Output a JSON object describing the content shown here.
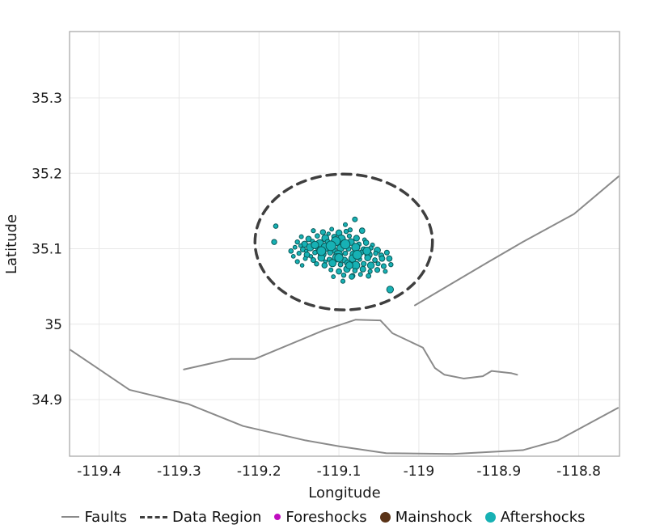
{
  "chart_data": {
    "type": "scatter",
    "title": "",
    "xlabel": "Longitude",
    "ylabel": "Latitude",
    "xlim": [
      -119.437,
      -118.749
    ],
    "ylim": [
      34.825,
      35.388
    ],
    "grid": true,
    "legend_position": "bottom",
    "frame_color": "#ababab",
    "grid_color": "#e8e8e8",
    "x_tick_values": [
      -119.4,
      -119.3,
      -119.2,
      -119.1,
      -119.0,
      -118.9,
      -118.8
    ],
    "x_tick_labels": [
      "-119.4",
      "-119.3",
      "-119.2",
      "-119.1",
      "-119",
      "-118.9",
      "-118.8"
    ],
    "y_tick_values": [
      34.9,
      35.0,
      35.1,
      35.2,
      35.3
    ],
    "y_tick_labels": [
      "34.9",
      "35",
      "35.1",
      "35.2",
      "35.3"
    ],
    "series": [
      {
        "name": "Faults",
        "type": "polyline",
        "color": "#8a8a8a",
        "width": 2,
        "lines": [
          [
            [
              -119.005,
              35.025
            ],
            [
              -118.914,
              35.082
            ],
            [
              -118.87,
              35.109
            ],
            [
              -118.806,
              35.146
            ],
            [
              -118.75,
              35.196
            ]
          ],
          [
            [
              -119.294,
              34.94
            ],
            [
              -119.235,
              34.954
            ],
            [
              -119.205,
              34.954
            ],
            [
              -119.119,
              34.992
            ],
            [
              -119.079,
              35.006
            ],
            [
              -119.048,
              35.005
            ],
            [
              -119.033,
              34.988
            ],
            [
              -118.995,
              34.969
            ],
            [
              -118.98,
              34.942
            ],
            [
              -118.968,
              34.933
            ],
            [
              -118.944,
              34.928
            ],
            [
              -118.92,
              34.931
            ],
            [
              -118.909,
              34.938
            ],
            [
              -118.884,
              34.935
            ],
            [
              -118.877,
              34.933
            ]
          ],
          [
            [
              -119.436,
              34.966
            ],
            [
              -119.362,
              34.913
            ],
            [
              -119.288,
              34.894
            ],
            [
              -119.22,
              34.865
            ],
            [
              -119.142,
              34.846
            ],
            [
              -119.099,
              34.838
            ],
            [
              -119.041,
              34.829
            ],
            [
              -118.958,
              34.828
            ],
            [
              -118.87,
              34.833
            ],
            [
              -118.826,
              34.846
            ],
            [
              -118.786,
              34.869
            ],
            [
              -118.751,
              34.889
            ]
          ]
        ]
      },
      {
        "name": "Data Region",
        "type": "ellipse",
        "color": "#3f3f3f",
        "width": 3.5,
        "dash": "11 8",
        "center": [
          -119.094,
          35.109
        ],
        "rx": 0.111,
        "ry": 0.09
      },
      {
        "name": "Foreshocks",
        "type": "scatter",
        "color": "#bf0dbf",
        "stroke": "#7a067a",
        "points": []
      },
      {
        "name": "Mainshock",
        "type": "scatter",
        "color": "#5a3317",
        "stroke": "#1c1c1c",
        "points": [
          [
            -119.092,
            35.106,
            5
          ]
        ]
      },
      {
        "name": "Aftershocks",
        "type": "scatter",
        "color": "#17b1b4",
        "stroke": "#0a5a5a",
        "points": [
          [
            -119.179,
            35.13,
            2.8
          ],
          [
            -119.181,
            35.109,
            3.2
          ],
          [
            -119.08,
            35.139,
            3.0
          ],
          [
            -119.092,
            35.132,
            2.5
          ],
          [
            -119.071,
            35.124,
            3.4
          ],
          [
            -119.086,
            35.125,
            2.6
          ],
          [
            -119.036,
            35.046,
            4.2
          ],
          [
            -119.095,
            35.057,
            2.6
          ],
          [
            -119.083,
            35.064,
            3.0
          ],
          [
            -119.107,
            35.063,
            2.4
          ],
          [
            -119.132,
            35.124,
            2.6
          ],
          [
            -119.12,
            35.122,
            3.2
          ],
          [
            -119.109,
            35.126,
            2.4
          ],
          [
            -119.1,
            35.121,
            3.8
          ],
          [
            -119.091,
            35.123,
            2.7
          ],
          [
            -119.113,
            35.12,
            2.2
          ],
          [
            -119.147,
            35.116,
            2.5
          ],
          [
            -119.138,
            35.113,
            3.4
          ],
          [
            -119.127,
            35.117,
            2.8
          ],
          [
            -119.117,
            35.114,
            4.4
          ],
          [
            -119.106,
            35.116,
            3.0
          ],
          [
            -119.097,
            35.113,
            5.0
          ],
          [
            -119.087,
            35.117,
            2.6
          ],
          [
            -119.078,
            35.114,
            3.6
          ],
          [
            -119.068,
            35.112,
            2.4
          ],
          [
            -119.152,
            35.109,
            2.7
          ],
          [
            -119.143,
            35.106,
            3.8
          ],
          [
            -119.133,
            35.11,
            2.5
          ],
          [
            -119.124,
            35.107,
            4.8
          ],
          [
            -119.114,
            35.109,
            3.2
          ],
          [
            -119.104,
            35.11,
            5.6
          ],
          [
            -119.095,
            35.107,
            3.5
          ],
          [
            -119.085,
            35.109,
            4.2
          ],
          [
            -119.075,
            35.106,
            2.8
          ],
          [
            -119.066,
            35.108,
            3.3
          ],
          [
            -119.058,
            35.105,
            2.5
          ],
          [
            -119.148,
            35.104,
            2.3
          ],
          [
            -119.155,
            35.102,
            2.4
          ],
          [
            -119.145,
            35.099,
            3.1
          ],
          [
            -119.136,
            35.102,
            4.6
          ],
          [
            -119.126,
            35.1,
            2.9
          ],
          [
            -119.117,
            35.102,
            5.2
          ],
          [
            -119.107,
            35.099,
            3.7
          ],
          [
            -119.098,
            35.101,
            4.4
          ],
          [
            -119.088,
            35.1,
            3.0
          ],
          [
            -119.079,
            35.102,
            5.0
          ],
          [
            -119.069,
            35.099,
            3.4
          ],
          [
            -119.06,
            35.101,
            2.7
          ],
          [
            -119.052,
            35.098,
            3.9
          ],
          [
            -119.141,
            35.097,
            2.2
          ],
          [
            -119.15,
            35.094,
            2.6
          ],
          [
            -119.14,
            35.092,
            3.5
          ],
          [
            -119.13,
            35.095,
            2.8
          ],
          [
            -119.121,
            35.093,
            4.9
          ],
          [
            -119.111,
            35.095,
            3.3
          ],
          [
            -119.101,
            35.092,
            5.4
          ],
          [
            -119.092,
            35.094,
            2.9
          ],
          [
            -119.082,
            35.093,
            4.1
          ],
          [
            -119.072,
            35.095,
            3.1
          ],
          [
            -119.063,
            35.092,
            4.6
          ],
          [
            -119.054,
            35.094,
            2.7
          ],
          [
            -119.047,
            35.091,
            3.2
          ],
          [
            -119.135,
            35.09,
            2.3
          ],
          [
            -119.142,
            35.087,
            2.5
          ],
          [
            -119.132,
            35.085,
            3.0
          ],
          [
            -119.122,
            35.088,
            4.3
          ],
          [
            -119.112,
            35.086,
            2.8
          ],
          [
            -119.103,
            35.088,
            5.1
          ],
          [
            -119.093,
            35.085,
            3.6
          ],
          [
            -119.083,
            35.087,
            4.7
          ],
          [
            -119.074,
            35.086,
            2.6
          ],
          [
            -119.064,
            35.088,
            3.8
          ],
          [
            -119.055,
            35.085,
            2.9
          ],
          [
            -119.046,
            35.087,
            3.4
          ],
          [
            -119.117,
            35.083,
            2.2
          ],
          [
            -119.128,
            35.08,
            2.7
          ],
          [
            -119.118,
            35.078,
            3.3
          ],
          [
            -119.108,
            35.081,
            4.5
          ],
          [
            -119.098,
            35.079,
            2.9
          ],
          [
            -119.089,
            35.081,
            3.9
          ],
          [
            -119.079,
            35.078,
            5.0
          ],
          [
            -119.069,
            35.08,
            3.1
          ],
          [
            -119.06,
            35.078,
            4.2
          ],
          [
            -119.051,
            35.08,
            2.6
          ],
          [
            -119.044,
            35.077,
            3.0
          ],
          [
            -119.11,
            35.072,
            2.5
          ],
          [
            -119.1,
            35.07,
            3.4
          ],
          [
            -119.09,
            35.073,
            4.0
          ],
          [
            -119.08,
            35.071,
            2.8
          ],
          [
            -119.07,
            35.073,
            3.5
          ],
          [
            -119.061,
            35.07,
            2.6
          ],
          [
            -119.052,
            35.072,
            3.1
          ],
          [
            -119.094,
            35.065,
            2.7
          ],
          [
            -119.084,
            35.063,
            3.2
          ],
          [
            -119.073,
            35.066,
            2.5
          ],
          [
            -119.063,
            35.064,
            2.9
          ],
          [
            -119.16,
            35.097,
            2.8
          ],
          [
            -119.157,
            35.09,
            2.4
          ],
          [
            -119.152,
            35.083,
            2.6
          ],
          [
            -119.146,
            35.078,
            2.3
          ],
          [
            -119.11,
            35.104,
            6.0
          ],
          [
            -119.092,
            35.106,
            5.8
          ],
          [
            -119.122,
            35.097,
            5.5
          ],
          [
            -119.077,
            35.092,
            5.6
          ],
          [
            -119.1,
            35.088,
            5.2
          ],
          [
            -119.065,
            35.097,
            4.8
          ],
          [
            -119.13,
            35.105,
            4.6
          ],
          [
            -119.087,
            35.078,
            4.4
          ],
          [
            -119.04,
            35.095,
            3.0
          ],
          [
            -119.037,
            35.087,
            3.4
          ],
          [
            -119.035,
            35.079,
            2.7
          ],
          [
            -119.042,
            35.07,
            2.5
          ]
        ]
      }
    ]
  },
  "legend": {
    "items": [
      {
        "label": "Faults",
        "swatch": "line",
        "color": "#8a8a8a"
      },
      {
        "label": "Data Region",
        "swatch": "dashes",
        "color": "#3f3f3f"
      },
      {
        "label": "Foreshocks",
        "swatch": "dot-small",
        "color": "#bf0dbf"
      },
      {
        "label": "Mainshock",
        "swatch": "dot",
        "color": "#5a3317"
      },
      {
        "label": "Aftershocks",
        "swatch": "dot",
        "color": "#17b1b4"
      }
    ]
  }
}
